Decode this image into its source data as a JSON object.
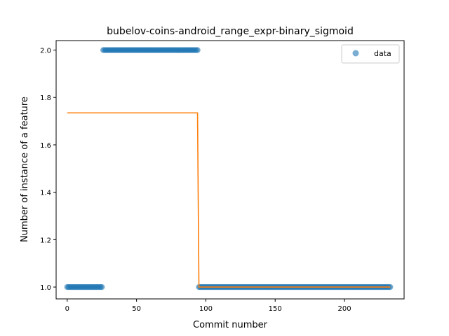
{
  "chart_data": {
    "type": "scatter",
    "title": "bubelov-coins-android_range_expr-binary_sigmoid",
    "xlabel": "Commit number",
    "ylabel": "Number of instance of a feature",
    "xlim": [
      -8,
      243
    ],
    "ylim": [
      0.95,
      2.04
    ],
    "xticks": [
      0,
      50,
      100,
      150,
      200
    ],
    "yticks": [
      1.0,
      1.2,
      1.4,
      1.6,
      1.8,
      2.0
    ],
    "ytick_labels": [
      "1.0",
      "1.2",
      "1.4",
      "1.6",
      "1.8",
      "2.0"
    ],
    "grid": false,
    "legend": {
      "position": "top-right",
      "entries": [
        "data"
      ]
    },
    "colors": {
      "data": "#1f77b4",
      "fit": "#ff7f0e"
    },
    "series": [
      {
        "name": "data",
        "kind": "scatter",
        "segments": [
          {
            "x_start": 0,
            "x_end": 25,
            "y": 1.0
          },
          {
            "x_start": 26,
            "x_end": 94,
            "y": 2.0
          },
          {
            "x_start": 95,
            "x_end": 233,
            "y": 1.0
          }
        ]
      },
      {
        "kind": "line",
        "x": [
          0,
          94,
          95,
          233
        ],
        "y": [
          1.735,
          1.735,
          1.0,
          1.0
        ]
      }
    ]
  }
}
